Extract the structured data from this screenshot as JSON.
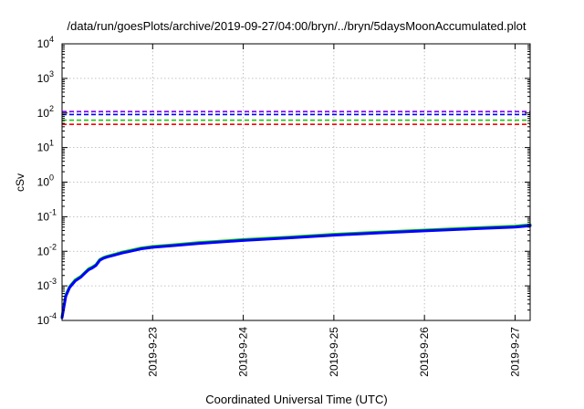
{
  "chart_data": {
    "type": "line",
    "title": "/data/run/goesPlots/archive/2019-09-27/04:00/bryn/../bryn/5daysMoonAccumulated.plot",
    "xlabel": "Coordinated Universal Time (UTC)",
    "ylabel": "cSv",
    "y_scale": "log",
    "ylim": [
      0.0001,
      10000
    ],
    "xlim": [
      "2019-09-22T00:00",
      "2019-09-27T04:00"
    ],
    "grid": true,
    "x_tick_labels": [
      "2019-9-23",
      "2019-9-24",
      "2019-9-25",
      "2019-9-26",
      "2019-9-27"
    ],
    "x_ticks": [
      "2019-09-23T00:00",
      "2019-09-24T00:00",
      "2019-09-25T00:00",
      "2019-09-26T00:00",
      "2019-09-27T00:00"
    ],
    "y_ticks": [
      {
        "value": 0.0001,
        "base": "10",
        "exp": "-4"
      },
      {
        "value": 0.001,
        "base": "10",
        "exp": "-3"
      },
      {
        "value": 0.01,
        "base": "10",
        "exp": "-2"
      },
      {
        "value": 0.1,
        "base": "10",
        "exp": "-1"
      },
      {
        "value": 1,
        "base": "10",
        "exp": "0"
      },
      {
        "value": 10,
        "base": "10",
        "exp": "1"
      },
      {
        "value": 100,
        "base": "10",
        "exp": "2"
      },
      {
        "value": 1000,
        "base": "10",
        "exp": "3"
      },
      {
        "value": 10000,
        "base": "10",
        "exp": "4"
      }
    ],
    "thresholds": [
      {
        "value": 110,
        "color": "#8000ff"
      },
      {
        "value": 90,
        "color": "#0000ff"
      },
      {
        "value": 62,
        "color": "#00cc00"
      },
      {
        "value": 47,
        "color": "#ff0000"
      }
    ],
    "series": [
      {
        "color": "#00cc00",
        "x": [
          "2019-09-22T00:00",
          "2019-09-22T01:00",
          "2019-09-22T02:00",
          "2019-09-22T03:30",
          "2019-09-22T05:00",
          "2019-09-22T06:00",
          "2019-09-22T07:00",
          "2019-09-22T08:00",
          "2019-09-22T09:00",
          "2019-09-22T10:00",
          "2019-09-22T11:00",
          "2019-09-22T12:00",
          "2019-09-22T14:00",
          "2019-09-22T16:00",
          "2019-09-22T18:00",
          "2019-09-22T21:00",
          "2019-09-23T00:00",
          "2019-09-23T06:00",
          "2019-09-23T12:00",
          "2019-09-24T00:00",
          "2019-09-24T12:00",
          "2019-09-25T00:00",
          "2019-09-25T12:00",
          "2019-09-26T00:00",
          "2019-09-26T12:00",
          "2019-09-27T00:00",
          "2019-09-27T04:00"
        ],
        "values": [
          0.00013,
          0.00055,
          0.00095,
          0.0015,
          0.0019,
          0.0024,
          0.0031,
          0.0035,
          0.0041,
          0.0058,
          0.0066,
          0.0072,
          0.0082,
          0.0095,
          0.0105,
          0.0125,
          0.0138,
          0.0155,
          0.0178,
          0.0218,
          0.0258,
          0.031,
          0.036,
          0.041,
          0.047,
          0.053,
          0.059
        ]
      },
      {
        "color": "#0000ff",
        "x": [
          "2019-09-22T00:00",
          "2019-09-22T01:00",
          "2019-09-22T02:00",
          "2019-09-22T03:30",
          "2019-09-22T05:00",
          "2019-09-22T06:00",
          "2019-09-22T07:00",
          "2019-09-22T08:00",
          "2019-09-22T09:00",
          "2019-09-22T10:00",
          "2019-09-22T11:00",
          "2019-09-22T12:00",
          "2019-09-22T14:00",
          "2019-09-22T16:00",
          "2019-09-22T18:00",
          "2019-09-22T21:00",
          "2019-09-23T00:00",
          "2019-09-23T06:00",
          "2019-09-23T12:00",
          "2019-09-24T00:00",
          "2019-09-24T12:00",
          "2019-09-25T00:00",
          "2019-09-25T12:00",
          "2019-09-26T00:00",
          "2019-09-26T12:00",
          "2019-09-27T00:00",
          "2019-09-27T04:00"
        ],
        "values": [
          0.00012,
          0.0005,
          0.0009,
          0.0014,
          0.0018,
          0.0023,
          0.0029,
          0.0033,
          0.0039,
          0.0055,
          0.0063,
          0.0069,
          0.0078,
          0.009,
          0.01,
          0.0118,
          0.013,
          0.0147,
          0.0168,
          0.0205,
          0.0243,
          0.0292,
          0.034,
          0.0388,
          0.0443,
          0.05,
          0.055
        ]
      }
    ]
  }
}
